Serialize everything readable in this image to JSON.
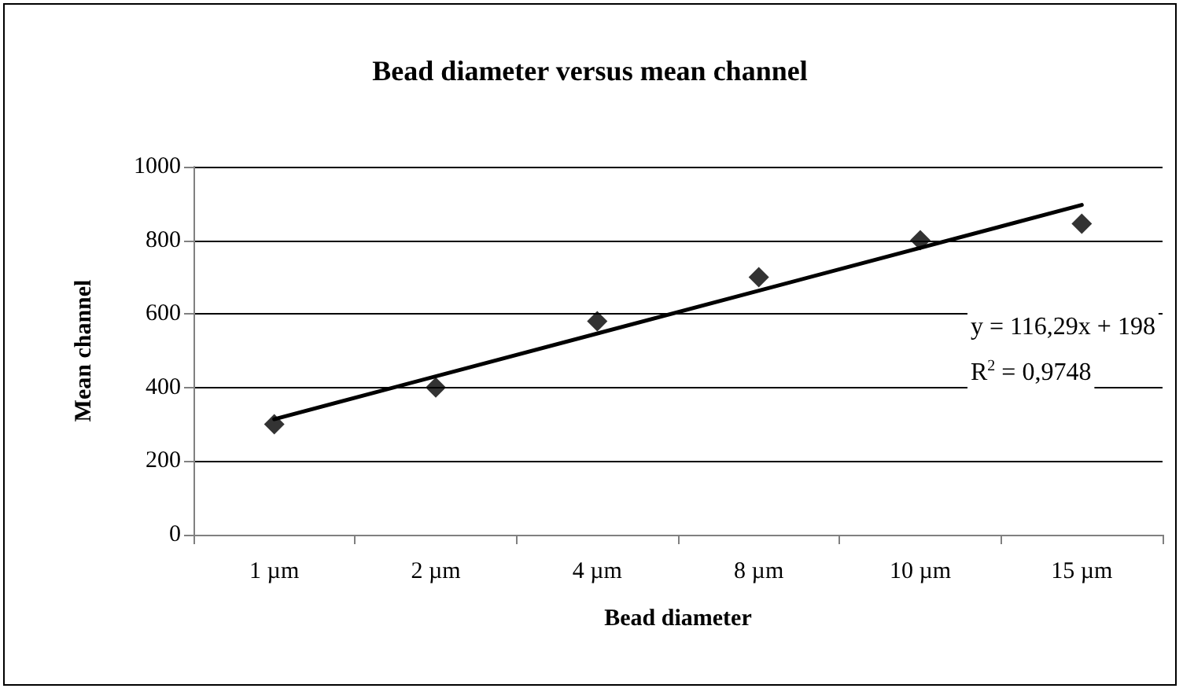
{
  "chart_data": {
    "type": "scatter",
    "title": "Bead diameter versus mean channel",
    "xlabel": "Bead diameter",
    "ylabel": "Mean channel",
    "categories": [
      "1 µm",
      "2 µm",
      "4 µm",
      "8 µm",
      "10 µm",
      "15 µm"
    ],
    "series": [
      {
        "color": "#000000",
        "marker": "diamond",
        "values": [
          300,
          400,
          580,
          700,
          800,
          845
        ]
      },
      {
        "type": "line",
        "color": "#000000",
        "x": [
          "1 µm",
          "15 µm"
        ],
        "values": [
          314,
          896
        ],
        "marker": "none",
        "line_style": "solid"
      }
    ],
    "ylim": [
      0,
      1000
    ],
    "yticks": [
      0,
      200,
      400,
      600,
      800,
      1000
    ],
    "grid": "y",
    "annotations": [
      "y = 116,29x + 198",
      "R$^{2}$ = 0,9748"
    ]
  }
}
